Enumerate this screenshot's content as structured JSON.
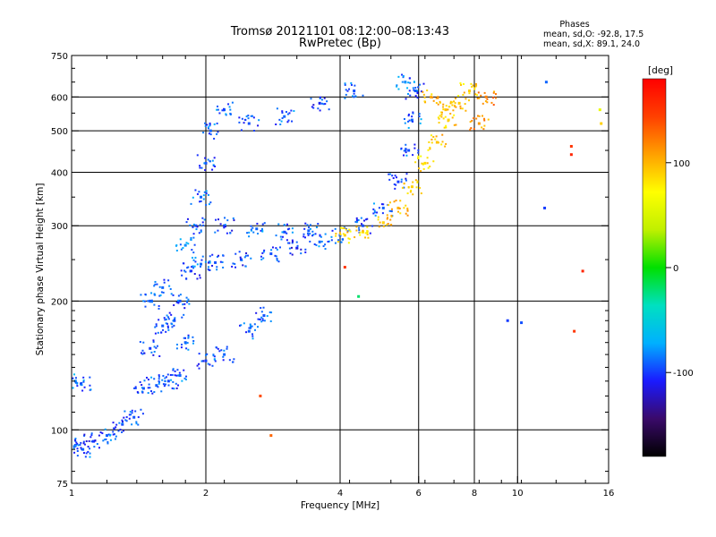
{
  "chart_data": {
    "type": "scatter",
    "title": "Tromsø 20121101 08:12:00–08:13:43",
    "subtitle": "RwPretec (Bp)",
    "annotation": {
      "heading": "Phases",
      "line1": "mean, sd,O: -92.8, 17.5",
      "line2": "mean, sd,X: 89.1, 24.0"
    },
    "xlabel": "Frequency [MHz]",
    "ylabel": "Stationary phase Virtual Height [km]",
    "x_scale": "log",
    "y_scale": "log",
    "xlim": [
      1,
      16
    ],
    "ylim": [
      75,
      750
    ],
    "x_ticks": [
      1,
      2,
      4,
      6,
      8,
      10,
      16
    ],
    "y_ticks": [
      75,
      100,
      200,
      300,
      400,
      500,
      600,
      750
    ],
    "x_grid": [
      2,
      4,
      6,
      8,
      10
    ],
    "y_grid": [
      100,
      200,
      300,
      400,
      500,
      600
    ],
    "grid": true,
    "colorbar": {
      "label": "[deg]",
      "range": [
        -180,
        180
      ],
      "ticks": [
        -100,
        0,
        100
      ],
      "colors": [
        "#000000",
        "#3a0a6a",
        "#1a1aff",
        "#00b0ff",
        "#00e0c0",
        "#00e000",
        "#c0f000",
        "#ffff00",
        "#ffa000",
        "#ff4000",
        "#ff0000"
      ]
    },
    "series": [
      {
        "points": [
          [
            1.02,
            92,
            -95
          ],
          [
            1.06,
            90,
            -90
          ],
          [
            1.12,
            94,
            -100
          ],
          [
            1.2,
            97,
            -92
          ],
          [
            1.3,
            103,
            -98
          ],
          [
            1.38,
            107,
            -94
          ],
          [
            1.02,
            130,
            -80
          ],
          [
            1.05,
            128,
            -88
          ],
          [
            1.45,
            125,
            -95
          ],
          [
            1.55,
            127,
            -92
          ],
          [
            1.65,
            130,
            -97
          ],
          [
            1.75,
            134,
            -90
          ],
          [
            1.5,
            155,
            -100
          ],
          [
            1.6,
            175,
            -92
          ],
          [
            1.75,
            200,
            -95
          ],
          [
            1.85,
            235,
            -98
          ],
          [
            1.95,
            244,
            -90
          ],
          [
            2.1,
            246,
            -95
          ],
          [
            2.4,
            250,
            -100
          ],
          [
            2.8,
            258,
            -95
          ],
          [
            3.2,
            266,
            -105
          ],
          [
            3.6,
            275,
            -90
          ],
          [
            4.0,
            285,
            -92
          ],
          [
            4.5,
            300,
            -95
          ],
          [
            5.0,
            330,
            -90
          ],
          [
            5.4,
            380,
            -100
          ],
          [
            5.7,
            450,
            -95
          ],
          [
            5.8,
            530,
            -90
          ],
          [
            5.9,
            620,
            -92
          ],
          [
            5.6,
            650,
            -85
          ],
          [
            1.8,
            270,
            -80
          ],
          [
            1.9,
            300,
            -95
          ],
          [
            1.95,
            350,
            -90
          ],
          [
            2.0,
            420,
            -95
          ],
          [
            2.05,
            500,
            -90
          ],
          [
            2.2,
            560,
            -85
          ],
          [
            2.5,
            520,
            -95
          ],
          [
            3.0,
            540,
            -90
          ],
          [
            3.6,
            580,
            -100
          ],
          [
            4.3,
            620,
            -95
          ],
          [
            2.2,
            300,
            -100
          ],
          [
            2.6,
            295,
            -90
          ],
          [
            3.0,
            290,
            -95
          ],
          [
            3.4,
            292,
            -92
          ],
          [
            1.5,
            200,
            -95
          ],
          [
            1.6,
            215,
            -90
          ],
          [
            1.7,
            180,
            -98
          ],
          [
            1.8,
            160,
            -92
          ],
          [
            2.0,
            145,
            -100
          ],
          [
            2.2,
            150,
            -90
          ],
          [
            2.5,
            170,
            -92
          ],
          [
            2.7,
            185,
            -95
          ]
        ]
      },
      {
        "points": [
          [
            4.1,
            285,
            90
          ],
          [
            4.5,
            290,
            85
          ],
          [
            5.0,
            305,
            95
          ],
          [
            5.4,
            330,
            100
          ],
          [
            5.8,
            370,
            90
          ],
          [
            6.2,
            420,
            85
          ],
          [
            6.6,
            470,
            95
          ],
          [
            7.0,
            530,
            88
          ],
          [
            7.4,
            580,
            92
          ],
          [
            7.8,
            620,
            90
          ],
          [
            6.4,
            600,
            100
          ],
          [
            6.9,
            560,
            95
          ],
          [
            8.2,
            520,
            110
          ],
          [
            8.5,
            600,
            120
          ]
        ]
      },
      {
        "points": [
          [
            2.65,
            120,
            140
          ],
          [
            2.8,
            97,
            130
          ],
          [
            4.1,
            240,
            150
          ],
          [
            4.4,
            205,
            -20
          ],
          [
            9.5,
            180,
            -100
          ],
          [
            10.2,
            178,
            -95
          ],
          [
            11.5,
            330,
            -100
          ],
          [
            11.6,
            650,
            -90
          ],
          [
            13.2,
            460,
            150
          ],
          [
            13.2,
            440,
            160
          ],
          [
            13.4,
            170,
            150
          ],
          [
            14.0,
            235,
            160
          ],
          [
            15.3,
            560,
            60
          ],
          [
            15.4,
            520,
            90
          ]
        ]
      }
    ]
  }
}
